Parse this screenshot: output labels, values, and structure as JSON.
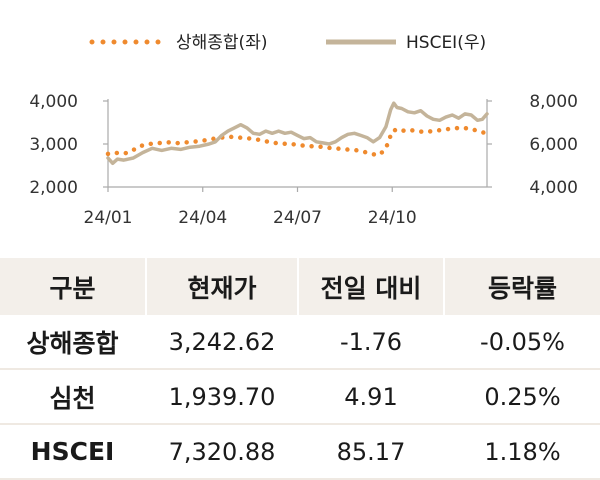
{
  "chart_data": {
    "type": "line",
    "legend_position": "top-center",
    "grid": false,
    "x_ticks": [
      "24/01",
      "24/04",
      "24/07",
      "24/10"
    ],
    "y_left_ticks": [
      "4,000",
      "3,000",
      "2,000"
    ],
    "y_right_ticks": [
      "8,000",
      "6,000",
      "4,000"
    ],
    "y_left_range": [
      2000,
      4000
    ],
    "y_right_range": [
      4000,
      8000
    ],
    "x_range": [
      0,
      12
    ],
    "series": [
      {
        "name": "상해종합(좌)",
        "axis": "left",
        "style": "dotted",
        "color": "#ef8a2e",
        "points": [
          [
            0,
            2770
          ],
          [
            0.2,
            2800
          ],
          [
            0.4,
            2780
          ],
          [
            0.6,
            2790
          ],
          [
            0.8,
            2860
          ],
          [
            1.0,
            2950
          ],
          [
            1.3,
            3000
          ],
          [
            1.6,
            3020
          ],
          [
            1.9,
            3040
          ],
          [
            2.2,
            3020
          ],
          [
            2.5,
            3040
          ],
          [
            2.8,
            3060
          ],
          [
            3.0,
            3080
          ],
          [
            3.2,
            3100
          ],
          [
            3.4,
            3130
          ],
          [
            3.6,
            3150
          ],
          [
            3.8,
            3170
          ],
          [
            4.0,
            3160
          ],
          [
            4.3,
            3140
          ],
          [
            4.6,
            3120
          ],
          [
            4.9,
            3080
          ],
          [
            5.2,
            3030
          ],
          [
            5.5,
            3010
          ],
          [
            5.8,
            3000
          ],
          [
            6.1,
            2970
          ],
          [
            6.4,
            2950
          ],
          [
            6.7,
            2940
          ],
          [
            7.0,
            2910
          ],
          [
            7.3,
            2890
          ],
          [
            7.6,
            2870
          ],
          [
            7.9,
            2850
          ],
          [
            8.2,
            2800
          ],
          [
            8.4,
            2760
          ],
          [
            8.6,
            2750
          ],
          [
            8.8,
            2900
          ],
          [
            9.0,
            3300
          ],
          [
            9.2,
            3350
          ],
          [
            9.4,
            3300
          ],
          [
            9.6,
            3320
          ],
          [
            9.8,
            3300
          ],
          [
            10.0,
            3280
          ],
          [
            10.3,
            3300
          ],
          [
            10.6,
            3330
          ],
          [
            10.9,
            3360
          ],
          [
            11.2,
            3380
          ],
          [
            11.5,
            3350
          ],
          [
            11.8,
            3280
          ],
          [
            12.0,
            3250
          ]
        ]
      },
      {
        "name": "HSCEI(우)",
        "axis": "right",
        "style": "solid",
        "color": "#c4b49a",
        "points": [
          [
            0,
            5350
          ],
          [
            0.15,
            5100
          ],
          [
            0.3,
            5300
          ],
          [
            0.5,
            5250
          ],
          [
            0.8,
            5350
          ],
          [
            1.1,
            5600
          ],
          [
            1.4,
            5800
          ],
          [
            1.7,
            5700
          ],
          [
            2.0,
            5800
          ],
          [
            2.3,
            5750
          ],
          [
            2.6,
            5850
          ],
          [
            2.9,
            5900
          ],
          [
            3.2,
            6000
          ],
          [
            3.4,
            6100
          ],
          [
            3.6,
            6400
          ],
          [
            3.8,
            6600
          ],
          [
            4.0,
            6750
          ],
          [
            4.2,
            6900
          ],
          [
            4.4,
            6750
          ],
          [
            4.6,
            6500
          ],
          [
            4.8,
            6450
          ],
          [
            5.0,
            6600
          ],
          [
            5.2,
            6500
          ],
          [
            5.4,
            6600
          ],
          [
            5.6,
            6500
          ],
          [
            5.8,
            6550
          ],
          [
            6.0,
            6400
          ],
          [
            6.2,
            6250
          ],
          [
            6.4,
            6300
          ],
          [
            6.6,
            6100
          ],
          [
            6.8,
            6050
          ],
          [
            7.0,
            6000
          ],
          [
            7.2,
            6100
          ],
          [
            7.4,
            6300
          ],
          [
            7.6,
            6450
          ],
          [
            7.8,
            6500
          ],
          [
            8.0,
            6400
          ],
          [
            8.2,
            6300
          ],
          [
            8.4,
            6100
          ],
          [
            8.6,
            6300
          ],
          [
            8.8,
            6800
          ],
          [
            8.95,
            7600
          ],
          [
            9.05,
            7900
          ],
          [
            9.15,
            7700
          ],
          [
            9.3,
            7650
          ],
          [
            9.5,
            7500
          ],
          [
            9.7,
            7450
          ],
          [
            9.9,
            7550
          ],
          [
            10.1,
            7300
          ],
          [
            10.3,
            7150
          ],
          [
            10.5,
            7100
          ],
          [
            10.7,
            7250
          ],
          [
            10.9,
            7350
          ],
          [
            11.1,
            7200
          ],
          [
            11.3,
            7400
          ],
          [
            11.5,
            7350
          ],
          [
            11.7,
            7100
          ],
          [
            11.85,
            7150
          ],
          [
            12.0,
            7400
          ]
        ]
      }
    ]
  },
  "table": {
    "headers": [
      "구분",
      "현재가",
      "전일 대비",
      "등락률"
    ],
    "rows": [
      {
        "name": "상해종합",
        "price": "3,242.62",
        "change": "-1.76",
        "rate": "-0.05%"
      },
      {
        "name": "심천",
        "price": "1,939.70",
        "change": "4.91",
        "rate": "0.25%"
      },
      {
        "name": "HSCEI",
        "price": "7,320.88",
        "change": "85.17",
        "rate": "1.18%"
      }
    ]
  }
}
